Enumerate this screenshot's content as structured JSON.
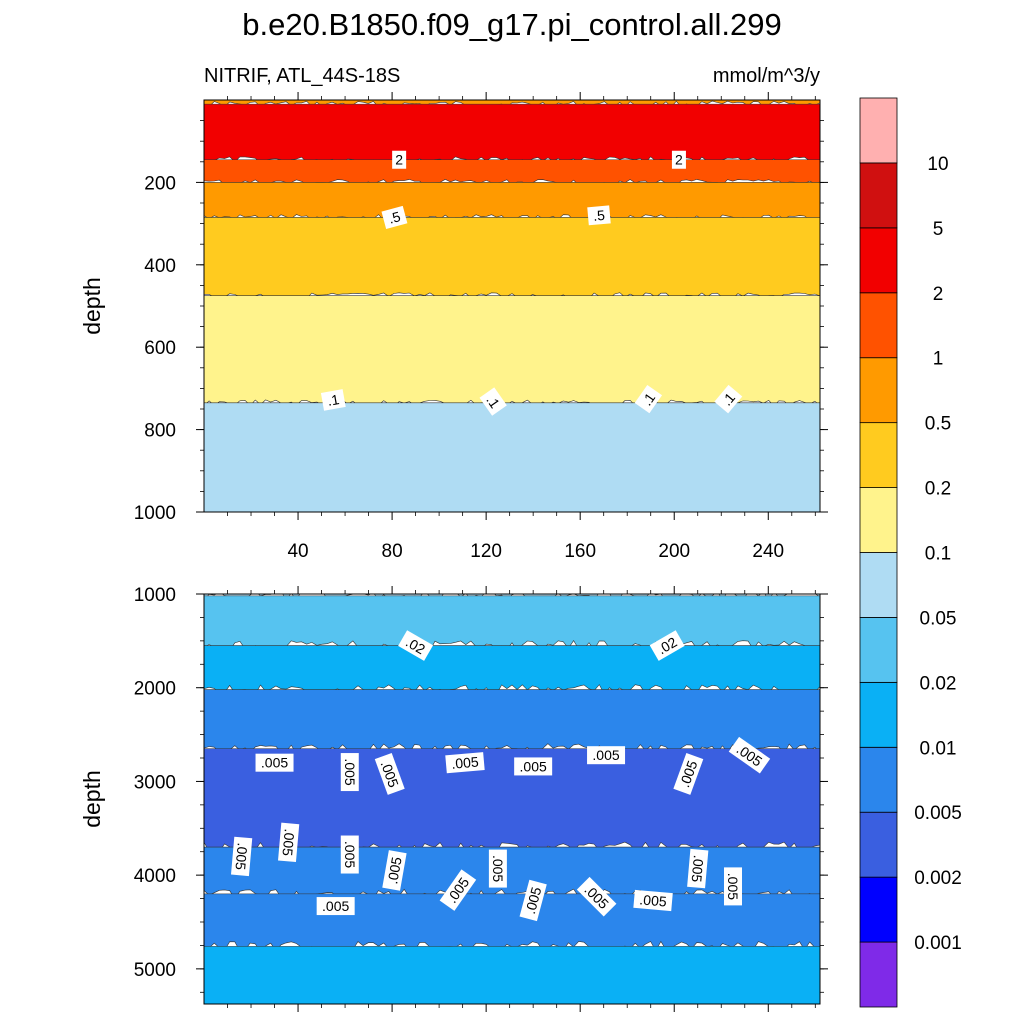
{
  "title": "b.e20.B1850.f09_g17.pi_control.all.299",
  "subtitle_left": "NITRIF, ATL_44S-18S",
  "subtitle_right": "mmol/m^3/y",
  "colorbar": {
    "colors": [
      "#7f2ae8",
      "#0000ff",
      "#3a5fe0",
      "#2b86ec",
      "#0ab0f5",
      "#56c3f0",
      "#afdcf3",
      "#fff38c",
      "#ffcb1f",
      "#ff9a00",
      "#ff5200",
      "#f20000",
      "#d01010",
      "#ffb0b0"
    ],
    "levels": [
      "0.001",
      "0.002",
      "0.005",
      "0.01",
      "0.02",
      "0.05",
      "0.1",
      "0.2",
      "0.5",
      "1",
      "2",
      "5",
      "10"
    ]
  },
  "chart_data": [
    {
      "type": "heatmap",
      "panel": "upper",
      "x": {
        "range": [
          0,
          262
        ],
        "ticks": [
          40,
          80,
          120,
          160,
          200,
          240
        ],
        "tick_labels": [
          "40",
          "80",
          "120",
          "160",
          "200",
          "240"
        ]
      },
      "y": {
        "label": "depth",
        "range": [
          0,
          1000
        ],
        "inverted": true,
        "ticks": [
          200,
          400,
          600,
          800,
          1000
        ],
        "tick_labels": [
          "200",
          "400",
          "600",
          "800",
          "1000"
        ]
      },
      "bands": [
        {
          "from": 0,
          "to": 10,
          "color": "#ff9a00"
        },
        {
          "from": 10,
          "to": 145,
          "color": "#f20000"
        },
        {
          "from": 145,
          "to": 200,
          "color": "#ff5200"
        },
        {
          "from": 200,
          "to": 285,
          "color": "#ff9a00"
        },
        {
          "from": 285,
          "to": 475,
          "color": "#ffcb1f"
        },
        {
          "from": 475,
          "to": 735,
          "color": "#fff38c"
        },
        {
          "from": 735,
          "to": 1000,
          "color": "#afdcf3"
        }
      ],
      "contour_labels": [
        {
          "text": "2",
          "x": 83,
          "y": 145,
          "rotate": 0
        },
        {
          "text": "2",
          "x": 202,
          "y": 145,
          "rotate": 0
        },
        {
          "text": ".5",
          "x": 81,
          "y": 285,
          "rotate": -15
        },
        {
          "text": ".5",
          "x": 168,
          "y": 280,
          "rotate": -5
        },
        {
          "text": ".1",
          "x": 55,
          "y": 728,
          "rotate": -10
        },
        {
          "text": ".1",
          "x": 123,
          "y": 732,
          "rotate": 55
        },
        {
          "text": ".1",
          "x": 189,
          "y": 726,
          "rotate": -55
        },
        {
          "text": ".1",
          "x": 223,
          "y": 726,
          "rotate": -50
        }
      ]
    },
    {
      "type": "heatmap",
      "panel": "lower",
      "x": {
        "range": [
          0,
          262
        ],
        "ticks": [
          40,
          80,
          120,
          160,
          200,
          240
        ],
        "tick_labels": []
      },
      "y": {
        "label": "depth",
        "range": [
          1000,
          5375
        ],
        "inverted": true,
        "ticks": [
          1000,
          2000,
          3000,
          4000,
          5000
        ],
        "tick_labels": [
          "1000",
          "2000",
          "3000",
          "4000",
          "5000"
        ]
      },
      "bands": [
        {
          "from": 1000,
          "to": 1020,
          "color": "#afdcf3"
        },
        {
          "from": 1020,
          "to": 1550,
          "color": "#56c3f0"
        },
        {
          "from": 1550,
          "to": 2020,
          "color": "#0ab0f5"
        },
        {
          "from": 2020,
          "to": 2650,
          "color": "#2b86ec"
        },
        {
          "from": 2650,
          "to": 3700,
          "color": "#3a5fe0"
        },
        {
          "from": 3700,
          "to": 4200,
          "color": "#2b86ec"
        },
        {
          "from": 4200,
          "to": 4760,
          "color": "#2b86ec"
        },
        {
          "from": 4760,
          "to": 5375,
          "color": "#0ab0f5"
        }
      ],
      "contour_labels": [
        {
          "text": ".02",
          "x": 90,
          "y": 1550,
          "rotate": 30
        },
        {
          "text": ".02",
          "x": 197,
          "y": 1550,
          "rotate": -30
        },
        {
          "text": ".005",
          "x": 30,
          "y": 2800,
          "rotate": 0
        },
        {
          "text": ".005",
          "x": 62,
          "y": 2900,
          "rotate": 90
        },
        {
          "text": ".005",
          "x": 79,
          "y": 2920,
          "rotate": 70
        },
        {
          "text": ".005",
          "x": 111,
          "y": 2800,
          "rotate": -5
        },
        {
          "text": ".005",
          "x": 140,
          "y": 2840,
          "rotate": 0
        },
        {
          "text": ".005",
          "x": 171,
          "y": 2720,
          "rotate": 0
        },
        {
          "text": ".005",
          "x": 206,
          "y": 2920,
          "rotate": -70
        },
        {
          "text": ".005",
          "x": 232,
          "y": 2720,
          "rotate": 35
        },
        {
          "text": ".005",
          "x": 16,
          "y": 3800,
          "rotate": 95
        },
        {
          "text": ".005",
          "x": 36,
          "y": 3650,
          "rotate": 95
        },
        {
          "text": ".005",
          "x": 62,
          "y": 3780,
          "rotate": 90
        },
        {
          "text": ".005",
          "x": 81,
          "y": 3950,
          "rotate": -80
        },
        {
          "text": ".005",
          "x": 125,
          "y": 3930,
          "rotate": 90
        },
        {
          "text": ".005",
          "x": 210,
          "y": 3930,
          "rotate": 95
        },
        {
          "text": ".005",
          "x": 225,
          "y": 4120,
          "rotate": 90
        },
        {
          "text": ".005",
          "x": 108,
          "y": 4160,
          "rotate": -55
        },
        {
          "text": ".005",
          "x": 140,
          "y": 4270,
          "rotate": -75
        },
        {
          "text": ".005",
          "x": 167,
          "y": 4230,
          "rotate": 45
        },
        {
          "text": ".005",
          "x": 191,
          "y": 4270,
          "rotate": 5
        },
        {
          "text": ".005",
          "x": 56,
          "y": 4330,
          "rotate": 0
        }
      ]
    }
  ]
}
